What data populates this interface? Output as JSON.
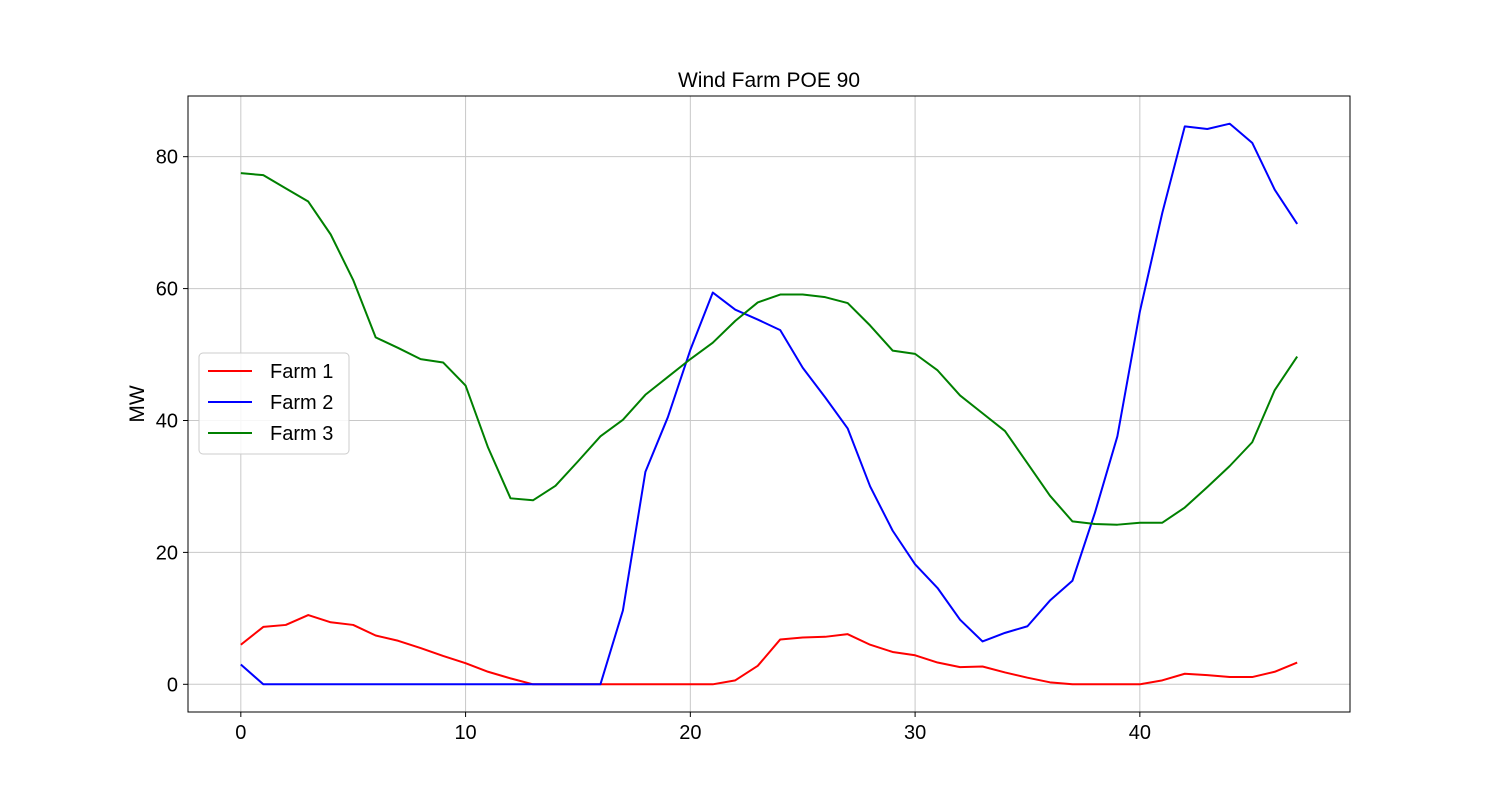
{
  "chart_data": {
    "type": "line",
    "title": "Wind Farm POE 90",
    "xlabel": "",
    "ylabel": "MW",
    "xlim": [
      -2.35,
      49.35
    ],
    "ylim": [
      -4.2,
      89.2
    ],
    "xticks": [
      0,
      10,
      20,
      30,
      40
    ],
    "yticks": [
      0,
      20,
      40,
      60,
      80
    ],
    "grid": true,
    "legend_position": "center-left",
    "x": [
      0,
      1,
      2,
      3,
      4,
      5,
      6,
      7,
      8,
      9,
      10,
      11,
      12,
      13,
      14,
      15,
      16,
      17,
      18,
      19,
      20,
      21,
      22,
      23,
      24,
      25,
      26,
      27,
      28,
      29,
      30,
      31,
      32,
      33,
      34,
      35,
      36,
      37,
      38,
      39,
      40,
      41,
      42,
      43,
      44,
      45,
      46,
      47
    ],
    "series": [
      {
        "name": "Farm 1",
        "color": "#ff0000",
        "values": [
          6.0,
          8.7,
          9.0,
          10.5,
          9.4,
          9.0,
          7.4,
          6.6,
          5.5,
          4.3,
          3.2,
          1.9,
          0.9,
          0.0,
          0.0,
          0.0,
          0.0,
          0.0,
          0.0,
          0.0,
          0.0,
          0.0,
          0.6,
          2.8,
          6.8,
          7.1,
          7.2,
          7.6,
          6.0,
          4.9,
          4.4,
          3.3,
          2.6,
          2.7,
          1.8,
          1.0,
          0.3,
          0.0,
          0.0,
          0.0,
          0.0,
          0.6,
          1.6,
          1.4,
          1.1,
          1.1,
          1.9,
          3.3
        ]
      },
      {
        "name": "Farm 2",
        "color": "#0000ff",
        "values": [
          3.0,
          0.0,
          0.0,
          0.0,
          0.0,
          0.0,
          0.0,
          0.0,
          0.0,
          0.0,
          0.0,
          0.0,
          0.0,
          0.0,
          0.0,
          0.0,
          0.0,
          11.2,
          32.2,
          40.5,
          50.7,
          59.4,
          56.8,
          55.3,
          53.7,
          48.0,
          43.5,
          38.8,
          30.0,
          23.3,
          18.2,
          14.6,
          9.8,
          6.5,
          7.8,
          8.8,
          12.7,
          15.7,
          26.0,
          37.6,
          56.5,
          71.5,
          84.6,
          84.2,
          85.0,
          82.1,
          75.0,
          69.8
        ]
      },
      {
        "name": "Farm 3",
        "color": "#008000",
        "values": [
          77.5,
          77.2,
          75.2,
          73.2,
          68.2,
          61.3,
          52.6,
          51.0,
          49.3,
          48.8,
          45.3,
          35.9,
          28.2,
          27.9,
          30.1,
          33.8,
          37.6,
          40.1,
          43.9,
          46.6,
          49.3,
          51.8,
          55.1,
          57.9,
          59.1,
          59.1,
          58.7,
          57.8,
          54.4,
          50.6,
          50.1,
          47.6,
          43.8,
          41.1,
          38.4,
          33.5,
          28.6,
          24.7,
          24.3,
          24.2,
          24.5,
          24.5,
          26.8,
          29.9,
          33.1,
          36.7,
          44.6,
          49.7
        ]
      }
    ]
  }
}
